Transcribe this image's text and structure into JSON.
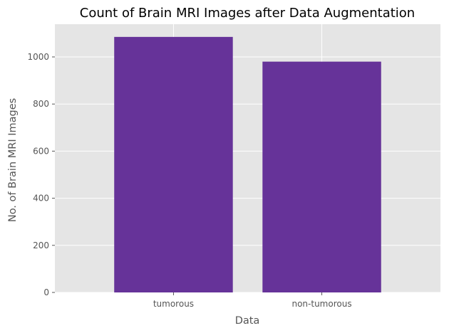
{
  "chart_data": {
    "type": "bar",
    "title": "Count of Brain MRI Images after Data Augmentation",
    "xlabel": "Data",
    "ylabel": "No. of Brain MRI Images",
    "categories": [
      "tumorous",
      "non-tumorous"
    ],
    "values": [
      1085,
      980
    ],
    "ylim": [
      0,
      1139
    ],
    "yticks": [
      0,
      200,
      400,
      600,
      800,
      1000
    ],
    "grid": true,
    "bar_color": "#663399",
    "background_color": "#e5e5e5",
    "grid_color": "#ffffff"
  }
}
